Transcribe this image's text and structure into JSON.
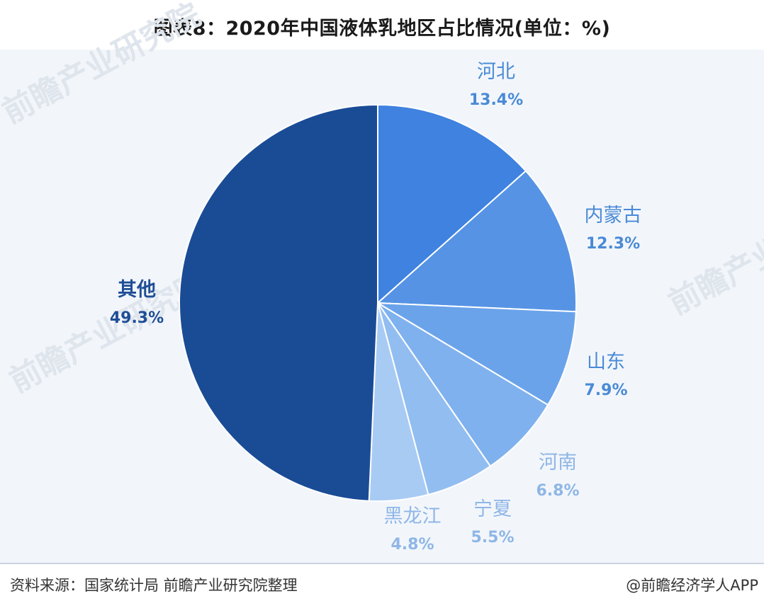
{
  "title": "图表8：2020年中国液体乳地区占比情况(单位：%)",
  "footer": {
    "source": "资料来源：国家统计局 前瞻产业研究院整理",
    "brand": "@前瞻经济学人APP"
  },
  "watermark": {
    "text": "前瞻产业研究院"
  },
  "colors": {
    "label_dark": "#1f4e96",
    "label_mid": "#4a8ad6",
    "label_light": "#8fb6e6"
  },
  "chart_data": {
    "type": "pie",
    "title": "图表8：2020年中国液体乳地区占比情况(单位：%)",
    "unit": "%",
    "start": "12 o'clock",
    "direction": "clockwise",
    "slices": [
      {
        "label": "河北",
        "value": 13.4,
        "value_label": "13.4%",
        "color": "#3f82e0"
      },
      {
        "label": "内蒙古",
        "value": 12.3,
        "value_label": "12.3%",
        "color": "#5693e4"
      },
      {
        "label": "山东",
        "value": 7.9,
        "value_label": "7.9%",
        "color": "#6aa3ea"
      },
      {
        "label": "河南",
        "value": 6.8,
        "value_label": "6.8%",
        "color": "#7fb1ee"
      },
      {
        "label": "宁夏",
        "value": 5.5,
        "value_label": "5.5%",
        "color": "#92bdf0"
      },
      {
        "label": "黑龙江",
        "value": 4.8,
        "value_label": "4.8%",
        "color": "#a8cbf4"
      },
      {
        "label": "其他",
        "value": 49.3,
        "value_label": "49.3%",
        "color": "#1a4c96"
      }
    ]
  }
}
